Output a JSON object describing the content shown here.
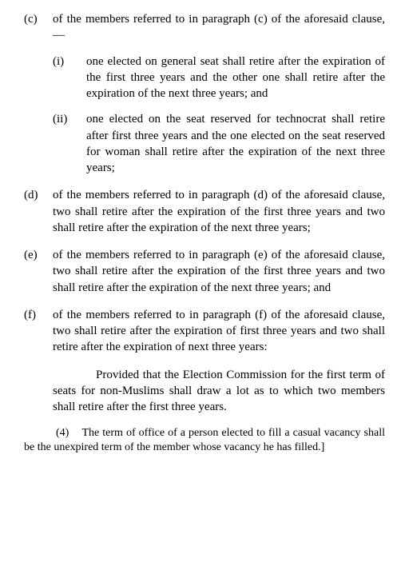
{
  "clauses": {
    "c": {
      "label": "(c)",
      "text": "of the members referred to in paragraph (c) of the aforesaid clause,—",
      "sub": {
        "i": {
          "label": "(i)",
          "text": "one elected on general seat shall retire after the expiration of the first three years and the other one shall retire after the expiration of the next three years; and"
        },
        "ii": {
          "label": "(ii)",
          "text": "one elected on the seat reserved for technocrat shall retire after first three years and the one elected on the seat reserved for woman shall retire after the expiration of the next three years;"
        }
      }
    },
    "d": {
      "label": "(d)",
      "text": "of the members referred to in paragraph (d) of the aforesaid clause, two shall retire after the expiration of the first three years and two shall retire after the expiration of the next three years;"
    },
    "e": {
      "label": "(e)",
      "text": "of the members referred to in paragraph (e) of the aforesaid clause, two shall retire after the expiration of the first three years and two shall retire after the expiration of the next three years; and"
    },
    "f": {
      "label": "(f)",
      "text": "of the members referred to in paragraph (f) of the aforesaid clause, two shall retire after the expiration of first three years and two shall retire after the expiration of next three years:"
    }
  },
  "proviso": "Provided that the Election Commission for the first term of seats for non-Muslims shall draw a lot as to which two members shall retire after the first three years.",
  "para4": {
    "num": "(4)",
    "text": "The term of office of a person elected to fill a casual vacancy shall be the unexpired term of the member whose vacancy he has filled.]"
  }
}
